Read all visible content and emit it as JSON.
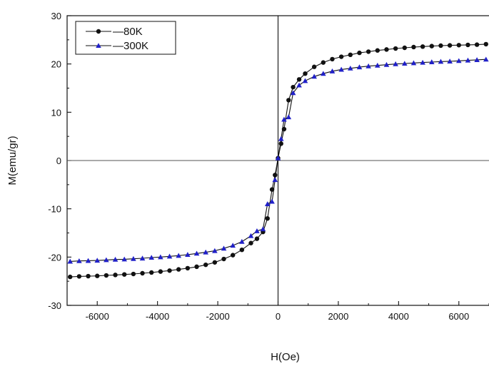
{
  "chart_data": {
    "type": "line",
    "xlabel": "H(Oe)",
    "ylabel": "M(emu/gr)",
    "xlim": [
      -7000,
      7000
    ],
    "ylim": [
      -30,
      30
    ],
    "xticks": [
      -6000,
      -4000,
      -2000,
      0,
      2000,
      4000,
      6000
    ],
    "yticks": [
      -30,
      -20,
      -10,
      0,
      10,
      20,
      30
    ],
    "xtick_labels": [
      "-6000",
      "-4000",
      "-2000",
      "0",
      "2000",
      "4000",
      "6000"
    ],
    "ytick_labels": [
      "-30",
      "-20",
      "-10",
      "0",
      "10",
      "20",
      "30"
    ],
    "reference_lines": {
      "x": 0,
      "y": 0
    },
    "grid": false,
    "legend_position": "top-left",
    "series": [
      {
        "name": "80K",
        "legend_label": "—80K",
        "color": "#111111",
        "marker": "circle",
        "x": [
          -6900,
          -6600,
          -6300,
          -6000,
          -5700,
          -5400,
          -5100,
          -4800,
          -4500,
          -4200,
          -3900,
          -3600,
          -3300,
          -3000,
          -2700,
          -2400,
          -2100,
          -1800,
          -1500,
          -1200,
          -900,
          -700,
          -500,
          -350,
          -200,
          -100,
          0,
          100,
          200,
          350,
          500,
          700,
          900,
          1200,
          1500,
          1800,
          2100,
          2400,
          2700,
          3000,
          3300,
          3600,
          3900,
          4200,
          4500,
          4800,
          5100,
          5400,
          5700,
          6000,
          6300,
          6600,
          6900
        ],
        "y": [
          -24.1,
          -24.0,
          -23.95,
          -23.9,
          -23.8,
          -23.7,
          -23.6,
          -23.5,
          -23.35,
          -23.2,
          -23.0,
          -22.8,
          -22.55,
          -22.3,
          -22.0,
          -21.6,
          -21.1,
          -20.4,
          -19.6,
          -18.5,
          -17.1,
          -16.2,
          -14.8,
          -12.0,
          -6.0,
          -3.0,
          0.5,
          3.5,
          6.5,
          12.5,
          15.2,
          16.8,
          18.0,
          19.4,
          20.3,
          21.0,
          21.5,
          21.9,
          22.3,
          22.55,
          22.8,
          23.0,
          23.2,
          23.35,
          23.5,
          23.6,
          23.7,
          23.8,
          23.85,
          23.9,
          23.95,
          24.0,
          24.1
        ]
      },
      {
        "name": "300K",
        "legend_label": "—300K",
        "color": "#2020c8",
        "marker": "triangle",
        "x": [
          -6900,
          -6600,
          -6300,
          -6000,
          -5700,
          -5400,
          -5100,
          -4800,
          -4500,
          -4200,
          -3900,
          -3600,
          -3300,
          -3000,
          -2700,
          -2400,
          -2100,
          -1800,
          -1500,
          -1200,
          -900,
          -700,
          -500,
          -350,
          -200,
          -100,
          0,
          100,
          200,
          350,
          500,
          700,
          900,
          1200,
          1500,
          1800,
          2100,
          2400,
          2700,
          3000,
          3300,
          3600,
          3900,
          4200,
          4500,
          4800,
          5100,
          5400,
          5700,
          6000,
          6300,
          6600,
          6900
        ],
        "y": [
          -20.9,
          -20.8,
          -20.75,
          -20.7,
          -20.6,
          -20.5,
          -20.45,
          -20.35,
          -20.25,
          -20.1,
          -20.0,
          -19.85,
          -19.7,
          -19.5,
          -19.25,
          -19.0,
          -18.7,
          -18.2,
          -17.6,
          -16.8,
          -15.6,
          -14.6,
          -14.2,
          -9.0,
          -8.5,
          -4.0,
          0.5,
          4.5,
          8.5,
          9.0,
          14.0,
          15.6,
          16.5,
          17.4,
          18.0,
          18.5,
          18.85,
          19.1,
          19.35,
          19.55,
          19.7,
          19.85,
          20.0,
          20.1,
          20.2,
          20.3,
          20.4,
          20.5,
          20.55,
          20.65,
          20.75,
          20.85,
          20.95
        ]
      }
    ]
  }
}
